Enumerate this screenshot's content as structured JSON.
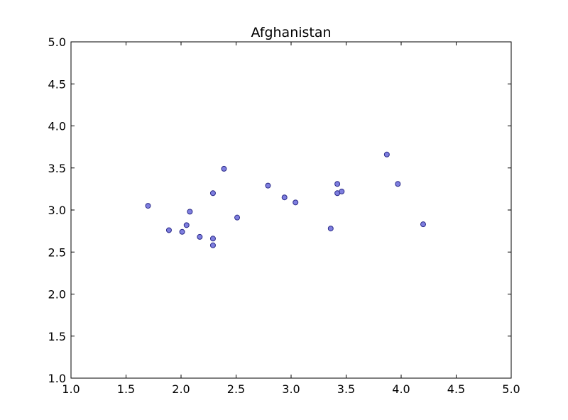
{
  "chart_data": {
    "type": "scatter",
    "title": "Afghanistan",
    "xlabel": "",
    "ylabel": "",
    "xlim": [
      1.0,
      5.0
    ],
    "ylim": [
      1.0,
      5.0
    ],
    "xticks": [
      "1.0",
      "1.5",
      "2.0",
      "2.5",
      "3.0",
      "3.5",
      "4.0",
      "4.5",
      "5.0"
    ],
    "yticks": [
      "1.0",
      "1.5",
      "2.0",
      "2.5",
      "3.0",
      "3.5",
      "4.0",
      "4.5",
      "5.0"
    ],
    "grid": false,
    "marker_color": "#7777dd",
    "marker_edge": "#2b2b88",
    "points": [
      {
        "x": 1.7,
        "y": 3.05
      },
      {
        "x": 1.89,
        "y": 2.76
      },
      {
        "x": 2.01,
        "y": 2.74
      },
      {
        "x": 2.05,
        "y": 2.82
      },
      {
        "x": 2.08,
        "y": 2.98
      },
      {
        "x": 2.17,
        "y": 2.68
      },
      {
        "x": 2.29,
        "y": 3.2
      },
      {
        "x": 2.29,
        "y": 2.66
      },
      {
        "x": 2.29,
        "y": 2.58
      },
      {
        "x": 2.39,
        "y": 3.49
      },
      {
        "x": 2.51,
        "y": 2.91
      },
      {
        "x": 2.79,
        "y": 3.29
      },
      {
        "x": 2.94,
        "y": 3.15
      },
      {
        "x": 3.04,
        "y": 3.09
      },
      {
        "x": 3.36,
        "y": 2.78
      },
      {
        "x": 3.42,
        "y": 3.2
      },
      {
        "x": 3.42,
        "y": 3.31
      },
      {
        "x": 3.46,
        "y": 3.22
      },
      {
        "x": 3.87,
        "y": 3.66
      },
      {
        "x": 3.97,
        "y": 3.31
      },
      {
        "x": 4.2,
        "y": 2.83
      }
    ]
  }
}
